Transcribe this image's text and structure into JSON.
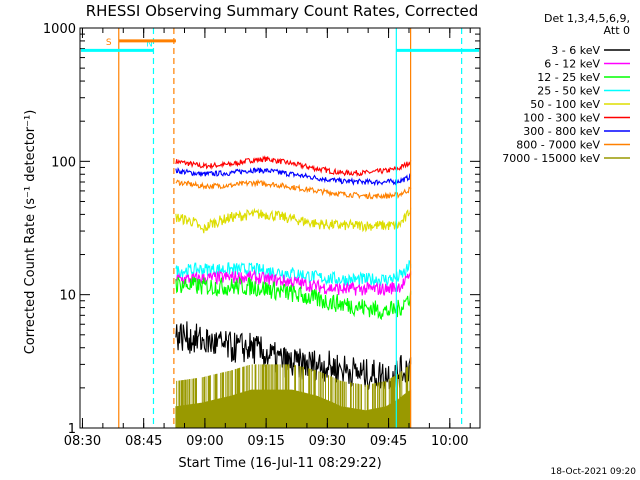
{
  "chart_data": {
    "type": "line",
    "title": "RHESSI Observing Summary Count Rates, Corrected",
    "xlabel": "Start Time (16-Jul-11 08:29:22)",
    "ylabel": "Corrected Count Rate (s⁻¹ detector⁻¹)",
    "xlim": [
      0,
      98
    ],
    "ylim": [
      1,
      1000
    ],
    "yscale": "log",
    "x_ticks": [
      {
        "v": 0.6,
        "label": "08:30"
      },
      {
        "v": 15.6,
        "label": "08:45"
      },
      {
        "v": 30.6,
        "label": "09:00"
      },
      {
        "v": 45.6,
        "label": "09:15"
      },
      {
        "v": 60.6,
        "label": "09:30"
      },
      {
        "v": 75.6,
        "label": "09:45"
      },
      {
        "v": 90.6,
        "label": "10:00"
      }
    ],
    "y_ticks": [
      {
        "v": 1,
        "label": "1"
      },
      {
        "v": 10,
        "label": "10"
      },
      {
        "v": 100,
        "label": "100"
      },
      {
        "v": 1000,
        "label": "1000"
      }
    ],
    "legend": {
      "position": "right",
      "header": [
        "Det 1,3,4,5,6,9,",
        "Att 0"
      ],
      "entries": [
        {
          "label": "3 - 6 keV",
          "color": "#000000"
        },
        {
          "label": "6 - 12 keV",
          "color": "#ff00ff"
        },
        {
          "label": "12 - 25 keV",
          "color": "#00ff00"
        },
        {
          "label": "25 - 50 keV",
          "color": "#00ffff"
        },
        {
          "label": "50 - 100 keV",
          "color": "#dddd00"
        },
        {
          "label": "100 - 300 keV",
          "color": "#ff0000"
        },
        {
          "label": "300 - 800 keV",
          "color": "#0000ff"
        },
        {
          "label": "800 - 7000 keV",
          "color": "#ff8000"
        },
        {
          "label": "7000 - 15000 keV",
          "color": "#999900"
        }
      ]
    },
    "data_window": [
      23.5,
      81.0
    ],
    "series": [
      {
        "name": "100 - 300 keV",
        "color": "#ff0000",
        "x": [
          23.5,
          30,
          37,
          42,
          46,
          52,
          58,
          64,
          70,
          75,
          78,
          80,
          81
        ],
        "y": [
          100,
          92,
          95,
          102,
          104,
          96,
          88,
          82,
          82,
          85,
          88,
          95,
          100
        ]
      },
      {
        "name": "300 - 800 keV",
        "color": "#0000ff",
        "x": [
          23.5,
          30,
          37,
          42,
          46,
          52,
          58,
          64,
          70,
          75,
          78,
          80,
          81
        ],
        "y": [
          85,
          80,
          82,
          86,
          85,
          80,
          75,
          71,
          70,
          70,
          71,
          74,
          78
        ]
      },
      {
        "name": "800 - 7000 keV",
        "color": "#ff8000",
        "x": [
          23.5,
          30,
          37,
          42,
          46,
          52,
          58,
          64,
          70,
          75,
          78,
          80,
          81
        ],
        "y": [
          70,
          65,
          66,
          69,
          68,
          64,
          60,
          57,
          55,
          55,
          56,
          60,
          62
        ]
      },
      {
        "name": "50 - 100 keV",
        "color": "#dddd00",
        "x": [
          23.5,
          25,
          28,
          30,
          32,
          37,
          42,
          46,
          52,
          58,
          64,
          70,
          75,
          78,
          80,
          81
        ],
        "y": [
          38,
          37,
          35,
          30,
          34,
          38,
          40,
          40,
          37,
          34,
          33,
          33,
          33,
          33,
          38,
          45
        ]
      },
      {
        "name": "25 - 50 keV",
        "color": "#00ffff",
        "x": [
          23.5,
          30,
          37,
          42,
          46,
          52,
          58,
          64,
          70,
          75,
          78,
          80,
          81
        ],
        "y": [
          15,
          15.5,
          15.5,
          15.5,
          15,
          14.5,
          13.5,
          13,
          13,
          13,
          13.5,
          15,
          17
        ]
      },
      {
        "name": "6 - 12 keV",
        "color": "#ff00ff",
        "x": [
          23.5,
          30,
          37,
          42,
          46,
          52,
          58,
          64,
          70,
          75,
          78,
          80,
          81
        ],
        "y": [
          13,
          13.2,
          13.5,
          13.5,
          13,
          12.5,
          11.5,
          11,
          11,
          11,
          11.5,
          12.5,
          15
        ]
      },
      {
        "name": "12 - 25 keV",
        "color": "#00ff00",
        "x": [
          23.5,
          30,
          37,
          42,
          46,
          52,
          58,
          64,
          70,
          75,
          78,
          80,
          81
        ],
        "y": [
          12,
          11.5,
          11.5,
          11.5,
          11,
          10.2,
          9.2,
          8.5,
          8,
          7.5,
          7.8,
          9,
          10
        ]
      },
      {
        "name": "3 - 6 keV",
        "color": "#000000",
        "x": [
          23.5,
          30,
          37,
          42,
          46,
          52,
          58,
          64,
          70,
          75,
          78,
          80,
          81
        ],
        "y": [
          5,
          4.5,
          4,
          4,
          3.5,
          3,
          3,
          2.8,
          2.5,
          2.5,
          2.6,
          2.8,
          3
        ]
      },
      {
        "name": "7000 - 15000 keV",
        "color": "#999900",
        "x": [
          23.5,
          30,
          37,
          42,
          46,
          52,
          58,
          64,
          70,
          75,
          78,
          80,
          81
        ],
        "y": [
          1.5,
          1.6,
          1.8,
          2,
          2,
          2,
          1.8,
          1.5,
          1.4,
          1.5,
          1.7,
          1.9,
          2
        ]
      }
    ],
    "annotations": {
      "saa_marker": {
        "label": "S",
        "color": "#ff8000",
        "x_start": 9.5,
        "x_end": 23.5,
        "level": 800
      },
      "night_marker": {
        "label": "N",
        "color": "#00ffff",
        "x_start": 0,
        "x_end": 18,
        "level": 680
      },
      "night_marker_2": {
        "color": "#00ffff",
        "x_start": 77.5,
        "x_end": 98,
        "level": 680
      },
      "vlines": [
        {
          "x": 9.5,
          "color": "#ff8000",
          "style": "solid"
        },
        {
          "x": 18.0,
          "color": "#00ffff",
          "style": "dashed"
        },
        {
          "x": 23.0,
          "color": "#ff8000",
          "style": "dashed"
        },
        {
          "x": 77.5,
          "color": "#00ffff",
          "style": "solid"
        },
        {
          "x": 81.0,
          "color": "#ff8000",
          "style": "solid"
        },
        {
          "x": 93.5,
          "color": "#00ffff",
          "style": "dashed"
        }
      ]
    },
    "footer": "18-Oct-2021 09:20"
  }
}
